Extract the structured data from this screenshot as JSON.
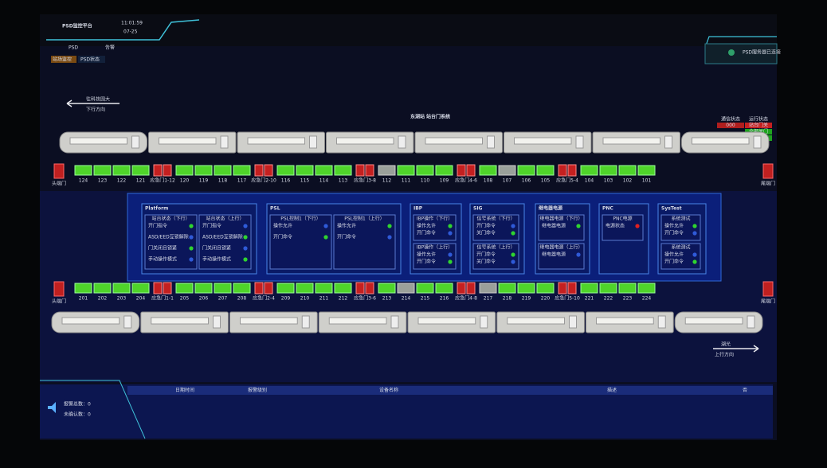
{
  "header": {
    "title": "PSD监控平台",
    "time": "11:01:59",
    "date": "07-25",
    "tabs": [
      "PSD",
      "告警"
    ],
    "buttons": [
      "站场监控",
      "PSD状态"
    ],
    "server": "PSD服务器已连接"
  },
  "station": {
    "title": "东湖站 站台门系统",
    "down_direction": {
      "destination": "往科技园大",
      "label": "下行方向"
    },
    "up_direction": {
      "destination": "湖光",
      "label": "上行方向"
    }
  },
  "status_table": {
    "headers": [
      "通信状态",
      "运行状态"
    ],
    "rows": [
      [
        "000",
        "站台门关"
      ],
      [
        "",
        "全部关门"
      ],
      [
        "",
        "全部锁紧"
      ]
    ]
  },
  "top_platform": {
    "head": "头端门",
    "tail": "尾端门",
    "segments": [
      {
        "doors": [
          "124",
          "123",
          "122",
          "121"
        ],
        "emergency": "应急门1-12"
      },
      {
        "doors": [
          "120",
          "119",
          "118",
          "117"
        ],
        "emergency": "应急门2-10"
      },
      {
        "doors": [
          "116",
          "115",
          "114",
          "113"
        ],
        "emergency": "应急门3-8"
      },
      {
        "doors": [
          "112",
          "111",
          "110",
          "109"
        ],
        "emergency": "应急门4-6"
      },
      {
        "doors": [
          "108",
          "107",
          "106",
          "105"
        ],
        "emergency": "应急门5-4"
      },
      {
        "doors": [
          "104",
          "103",
          "102",
          "101"
        ],
        "emergency": null
      }
    ]
  },
  "bottom_platform": {
    "head": "头端门",
    "tail": "尾端门",
    "segments": [
      {
        "doors": [
          "201",
          "202",
          "203",
          "204"
        ],
        "emergency": "应急门1-1"
      },
      {
        "doors": [
          "205",
          "206",
          "207",
          "208"
        ],
        "emergency": "应急门2-4"
      },
      {
        "doors": [
          "209",
          "210",
          "211",
          "212"
        ],
        "emergency": "应急门3-6"
      },
      {
        "doors": [
          "213",
          "214",
          "215",
          "216"
        ],
        "emergency": "应急门4-8"
      },
      {
        "doors": [
          "217",
          "218",
          "219",
          "220"
        ],
        "emergency": "应急门5-10"
      },
      {
        "doors": [
          "221",
          "222",
          "223",
          "224"
        ],
        "emergency": null
      }
    ]
  },
  "panels": [
    {
      "title": "Platform",
      "columns": [
        {
          "header": "站台状态（下行）",
          "rows": [
            "开门指令",
            "ASD/EED互锁解除",
            "门关闭且锁紧",
            "手动操作模式"
          ]
        },
        {
          "header": "站台状态（上行）",
          "rows": [
            "开门指令",
            "ASD/EED互锁解除",
            "门关闭且锁紧",
            "手动操作模式"
          ]
        }
      ]
    },
    {
      "title": "PSL",
      "columns": [
        {
          "header": "PSL控制1（下行）",
          "rows": [
            "操作允许",
            "开门命令"
          ]
        },
        {
          "header": "PSL控制1（上行）",
          "rows": [
            "操作允许",
            "开门命令"
          ]
        }
      ]
    },
    {
      "title": "IBP",
      "columns": [
        {
          "header": "IBP操作（下行）",
          "rows": [
            "操作允许",
            "开门命令"
          ]
        },
        {
          "header": "IBP操作（上行）",
          "rows": [
            "操作允许",
            "开门命令"
          ]
        }
      ]
    },
    {
      "title": "SIG",
      "columns": [
        {
          "header": "信号系统（下行）",
          "rows": [
            "开门命令",
            "关门命令"
          ]
        },
        {
          "header": "信号系统（上行）",
          "rows": [
            "开门命令",
            "关门命令"
          ]
        }
      ]
    },
    {
      "title": "继电器电源",
      "columns": [
        {
          "header": "继电器电源（下行）",
          "rows": [
            "继电器电源"
          ]
        },
        {
          "header": "继电器电源（上行）",
          "rows": [
            "继电器电源"
          ]
        }
      ]
    },
    {
      "title": "PNC",
      "columns": [
        {
          "header": "PNC电源",
          "rows": [
            "电源状态"
          ]
        }
      ]
    },
    {
      "title": "SysTest",
      "columns": [
        {
          "header": "系统测试",
          "rows": [
            "操作允许",
            "开门命令"
          ]
        },
        {
          "header": "系统测试",
          "rows": [
            "操作允许",
            "开门命令"
          ]
        }
      ]
    }
  ],
  "alarms": {
    "headers": [
      "日期时间",
      "报警级别",
      "设备名称",
      "描述",
      "否"
    ],
    "total": {
      "label": "报警总数：",
      "value": 0
    },
    "unconfirmed": {
      "label": "未确认数：",
      "value": 0
    }
  }
}
